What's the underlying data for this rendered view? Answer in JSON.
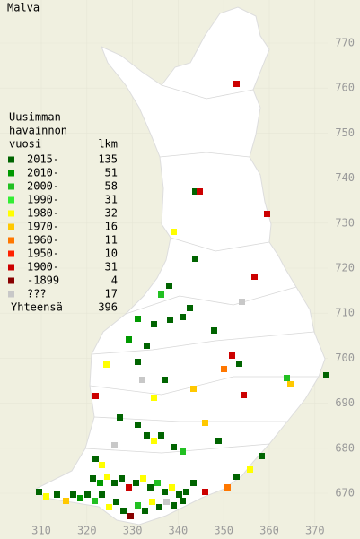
{
  "title": "Malva",
  "legend": {
    "heading": [
      "Uusimman",
      "havainnon",
      "vuosi"
    ],
    "count_heading": "lkm",
    "items": [
      {
        "label": "2015-",
        "count": 135,
        "color": "#006400"
      },
      {
        "label": "2010-",
        "count": 51,
        "color": "#009900"
      },
      {
        "label": "2000-",
        "count": 58,
        "color": "#22c022"
      },
      {
        "label": "1990-",
        "count": 31,
        "color": "#33ee33"
      },
      {
        "label": "1980-",
        "count": 32,
        "color": "#ffff00"
      },
      {
        "label": "1970-",
        "count": 16,
        "color": "#ffc800"
      },
      {
        "label": "1960-",
        "count": 11,
        "color": "#ff7700"
      },
      {
        "label": "1950-",
        "count": 10,
        "color": "#ff2200"
      },
      {
        "label": "1900-",
        "count": 31,
        "color": "#cc0000"
      },
      {
        "label": "-1899",
        "count": 4,
        "color": "#880000"
      },
      {
        "label": "???",
        "count": 17,
        "color": "#c8c8c8"
      }
    ],
    "total_label": "Yhteensä",
    "total": 396
  },
  "map": {
    "xticks": [
      310,
      320,
      330,
      340,
      350,
      360,
      370
    ],
    "yticks": [
      670,
      680,
      690,
      700,
      710,
      720,
      730,
      740,
      750,
      760,
      770
    ]
  }
}
